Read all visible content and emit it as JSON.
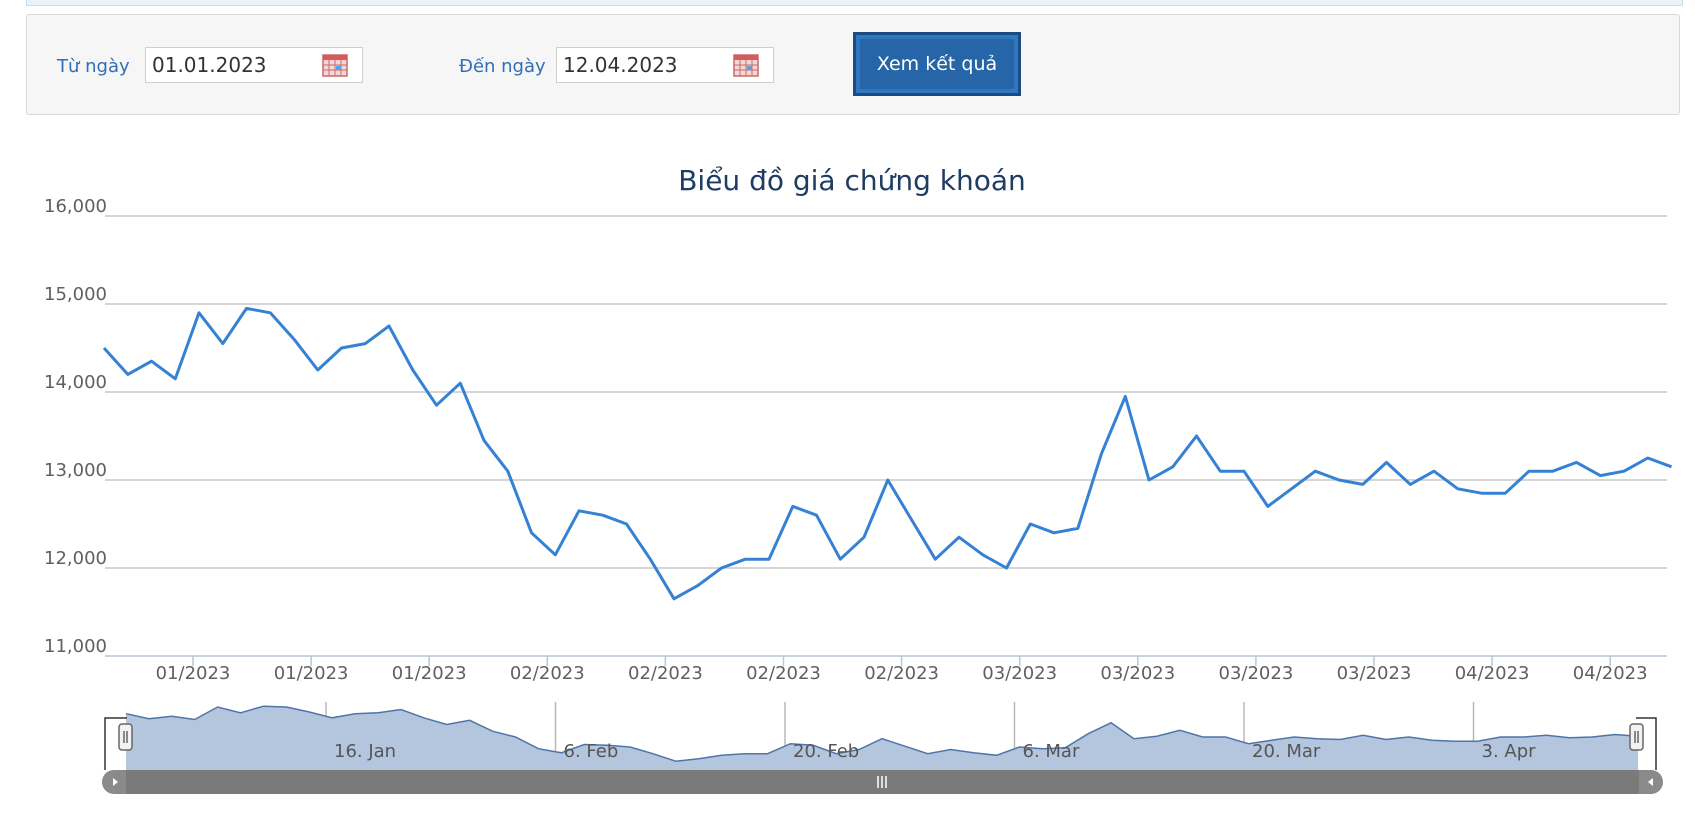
{
  "filter": {
    "from_label": "Từ ngày",
    "from_value": "01.01.2023",
    "to_label": "Đến ngày",
    "to_value": "12.04.2023",
    "submit_label": "Xem kết quả",
    "calendar_icon": "calendar-icon"
  },
  "colors": {
    "line": "#3581d4",
    "navigator_fill": "#b4c6dd",
    "navigator_line": "#4f75a8",
    "scrollbar": "#808080",
    "button": "#2565a8"
  },
  "chart_data": {
    "type": "line",
    "title": "Biểu đồ giá chứng khoán",
    "xlabel": "",
    "ylabel": "",
    "ylim": [
      11000,
      16000
    ],
    "yticks": [
      "11,000",
      "12,000",
      "13,000",
      "14,000",
      "15,000",
      "16,000"
    ],
    "xticks": [
      "01/2023",
      "01/2023",
      "01/2023",
      "02/2023",
      "02/2023",
      "02/2023",
      "02/2023",
      "03/2023",
      "03/2023",
      "03/2023",
      "03/2023",
      "04/2023",
      "04/2023"
    ],
    "grid": true,
    "legend": "none",
    "series": [
      {
        "values": [
          14500,
          14200,
          14350,
          14150,
          14900,
          14550,
          14950,
          14900,
          14600,
          14250,
          14500,
          14550,
          14750,
          14250,
          13850,
          14100,
          13450,
          13100,
          12400,
          12150,
          12650,
          12600,
          12500,
          12100,
          11650,
          11800,
          12000,
          12100,
          12100,
          12700,
          12600,
          12100,
          12350,
          13000,
          12550,
          12100,
          12350,
          12150,
          12000,
          12500,
          12400,
          12450,
          13300,
          13950,
          13000,
          13150,
          13500,
          13100,
          13100,
          12700,
          12900,
          13100,
          13000,
          12950,
          13200,
          12950,
          13100,
          12900,
          12850,
          12850,
          13100,
          13100,
          13200,
          13050,
          13100,
          13250,
          13150
        ]
      }
    ],
    "navigator": {
      "labels": [
        "16. Jan",
        "6. Feb",
        "20. Feb",
        "6. Mar",
        "20. Mar",
        "3. Apr"
      ],
      "scroll_icon": "grip-icon",
      "left_arrow": "arrow-left-icon",
      "right_arrow": "arrow-right-icon"
    }
  }
}
